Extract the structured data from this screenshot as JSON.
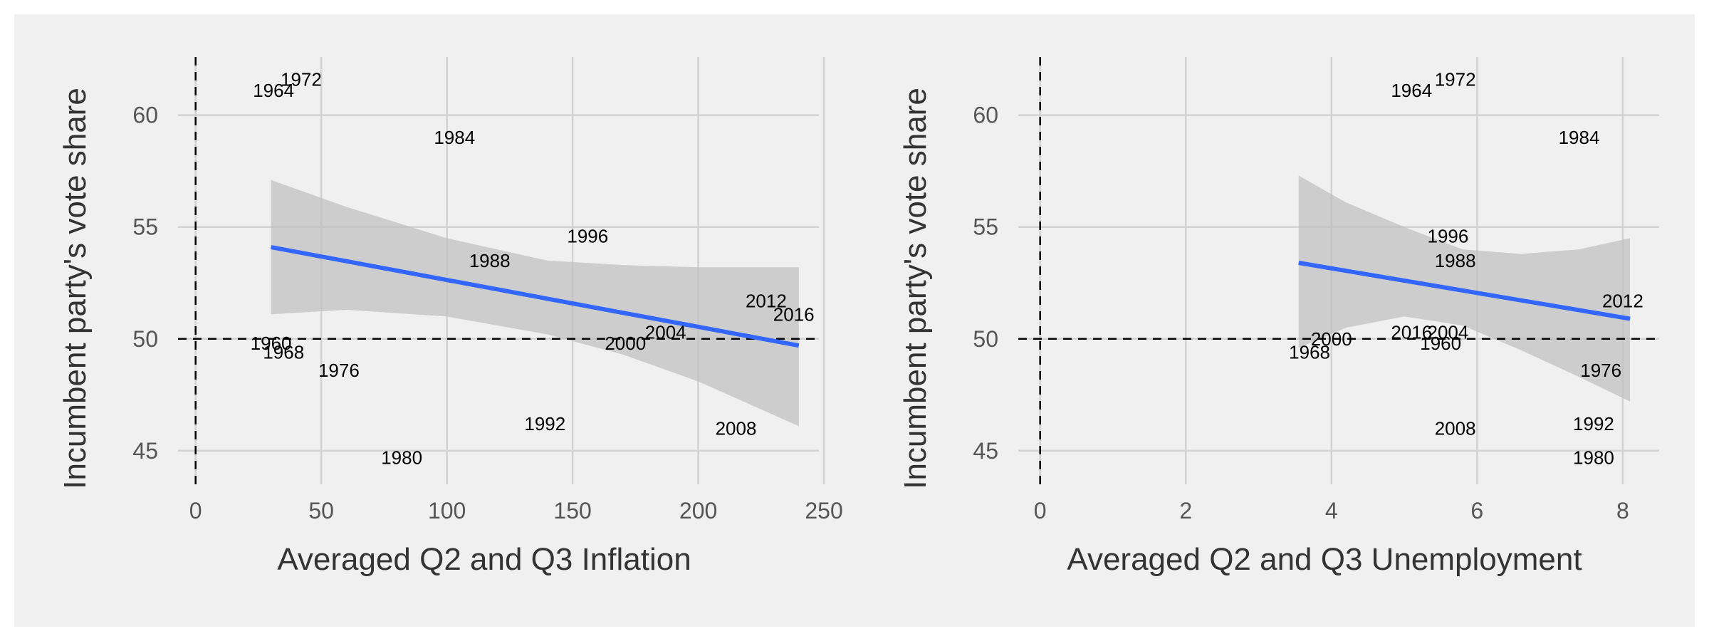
{
  "chart_data": [
    {
      "type": "scatter",
      "title": "",
      "xlabel": "Averaged Q2 and Q3 Inflation",
      "ylabel": "Incumbent party's vote share",
      "xlim": [
        -7,
        248
      ],
      "ylim": [
        43.5,
        62.6
      ],
      "xticks": [
        0,
        50,
        100,
        150,
        200,
        250
      ],
      "yticks": [
        45,
        50,
        55,
        60
      ],
      "grid": true,
      "reference_lines": {
        "x": 0,
        "y": 50
      },
      "points": [
        {
          "x": 31,
          "y": 61.1,
          "label": "1964"
        },
        {
          "x": 42,
          "y": 61.6,
          "label": "1972"
        },
        {
          "x": 103,
          "y": 59.0,
          "label": "1984"
        },
        {
          "x": 156,
          "y": 54.6,
          "label": "1996"
        },
        {
          "x": 117,
          "y": 53.5,
          "label": "1988"
        },
        {
          "x": 227,
          "y": 51.7,
          "label": "2012"
        },
        {
          "x": 238,
          "y": 51.1,
          "label": "2016"
        },
        {
          "x": 187,
          "y": 50.3,
          "label": "2004"
        },
        {
          "x": 171,
          "y": 49.8,
          "label": "2000"
        },
        {
          "x": 30,
          "y": 49.8,
          "label": "1960"
        },
        {
          "x": 35,
          "y": 49.4,
          "label": "1968"
        },
        {
          "x": 57,
          "y": 48.6,
          "label": "1976"
        },
        {
          "x": 139,
          "y": 46.2,
          "label": "1992"
        },
        {
          "x": 215,
          "y": 46.0,
          "label": "2008"
        },
        {
          "x": 82,
          "y": 44.7,
          "label": "1980"
        }
      ],
      "fit": {
        "method": "linear",
        "x": [
          30,
          240
        ],
        "y": [
          54.1,
          49.7
        ],
        "band_lower": [
          {
            "x": 30,
            "y": 51.1
          },
          {
            "x": 60,
            "y": 51.3
          },
          {
            "x": 100,
            "y": 51.0
          },
          {
            "x": 140,
            "y": 50.2
          },
          {
            "x": 170,
            "y": 49.3
          },
          {
            "x": 200,
            "y": 48.1
          },
          {
            "x": 240,
            "y": 46.1
          }
        ],
        "band_upper": [
          {
            "x": 30,
            "y": 57.1
          },
          {
            "x": 60,
            "y": 55.9
          },
          {
            "x": 100,
            "y": 54.5
          },
          {
            "x": 140,
            "y": 53.5
          },
          {
            "x": 170,
            "y": 53.3
          },
          {
            "x": 200,
            "y": 53.2
          },
          {
            "x": 240,
            "y": 53.2
          }
        ]
      }
    },
    {
      "type": "scatter",
      "title": "",
      "xlabel": "Averaged Q2 and Q3 Unemployment",
      "ylabel": "Incumbent party's vote share",
      "xlim": [
        -0.3,
        8.5
      ],
      "ylim": [
        43.5,
        62.6
      ],
      "xticks": [
        0,
        2,
        4,
        6,
        8
      ],
      "yticks": [
        45,
        50,
        55,
        60
      ],
      "grid": true,
      "reference_lines": {
        "x": 0,
        "y": 50
      },
      "points": [
        {
          "x": 5.1,
          "y": 61.1,
          "label": "1964"
        },
        {
          "x": 5.7,
          "y": 61.6,
          "label": "1972"
        },
        {
          "x": 7.4,
          "y": 59.0,
          "label": "1984"
        },
        {
          "x": 5.6,
          "y": 54.6,
          "label": "1996"
        },
        {
          "x": 5.7,
          "y": 53.5,
          "label": "1988"
        },
        {
          "x": 8.0,
          "y": 51.7,
          "label": "2012"
        },
        {
          "x": 5.1,
          "y": 50.3,
          "label": "2016"
        },
        {
          "x": 5.6,
          "y": 50.3,
          "label": "2004"
        },
        {
          "x": 4.0,
          "y": 50.0,
          "label": "2000"
        },
        {
          "x": 3.7,
          "y": 49.4,
          "label": "1968"
        },
        {
          "x": 5.5,
          "y": 49.8,
          "label": "1960"
        },
        {
          "x": 7.7,
          "y": 48.6,
          "label": "1976"
        },
        {
          "x": 5.7,
          "y": 46.0,
          "label": "2008"
        },
        {
          "x": 7.6,
          "y": 46.2,
          "label": "1992"
        },
        {
          "x": 7.6,
          "y": 44.7,
          "label": "1980"
        }
      ],
      "fit": {
        "method": "linear",
        "x": [
          3.55,
          8.1
        ],
        "y": [
          53.4,
          50.9
        ],
        "band_lower": [
          {
            "x": 3.55,
            "y": 49.6
          },
          {
            "x": 4.2,
            "y": 50.5
          },
          {
            "x": 5.0,
            "y": 51.0
          },
          {
            "x": 5.8,
            "y": 50.6
          },
          {
            "x": 6.6,
            "y": 49.5
          },
          {
            "x": 7.4,
            "y": 48.3
          },
          {
            "x": 8.1,
            "y": 47.2
          }
        ],
        "band_upper": [
          {
            "x": 3.55,
            "y": 57.3
          },
          {
            "x": 4.2,
            "y": 56.1
          },
          {
            "x": 5.0,
            "y": 55.0
          },
          {
            "x": 5.8,
            "y": 54.0
          },
          {
            "x": 6.6,
            "y": 53.8
          },
          {
            "x": 7.4,
            "y": 54.0
          },
          {
            "x": 8.1,
            "y": 54.5
          }
        ]
      }
    }
  ]
}
